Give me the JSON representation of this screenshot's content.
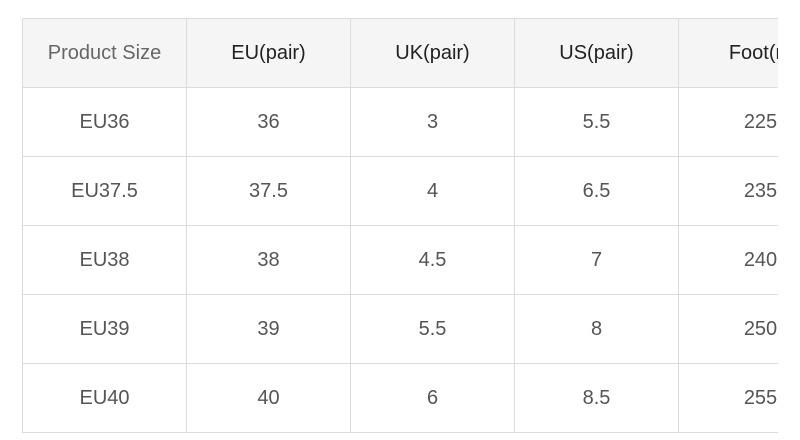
{
  "table": {
    "header": [
      "Product Size",
      "EU(pair)",
      "UK(pair)",
      "US(pair)",
      "Foot(m"
    ],
    "rows": [
      [
        "EU36",
        "36",
        "3",
        "5.5",
        "225"
      ],
      [
        "EU37.5",
        "37.5",
        "4",
        "6.5",
        "235"
      ],
      [
        "EU38",
        "38",
        "4.5",
        "7",
        "240"
      ],
      [
        "EU39",
        "39",
        "5.5",
        "8",
        "250"
      ],
      [
        "EU40",
        "40",
        "6",
        "8.5",
        "255"
      ]
    ]
  }
}
